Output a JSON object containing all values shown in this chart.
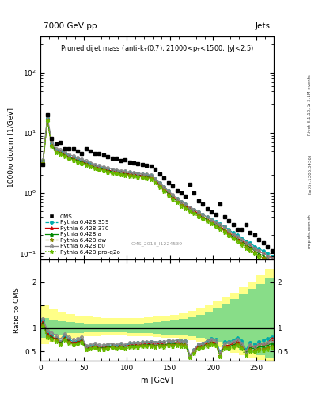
{
  "title_top": "7000 GeV pp",
  "title_right": "Jets",
  "plot_title": "Pruned dijet mass (anti-k_{T}(0.7), 21000<p_{T}<1500, |y|<2.5)",
  "ylabel_main": "1000/σ dσ/dm [1/GeV]",
  "ylabel_ratio": "Ratio to CMS",
  "xlabel": "m [GeV]",
  "watermark": "CMS_2013_I1224539",
  "rivet_label": "Rivet 3.1.10, ≥ 3.1M events",
  "arxiv_label": "[arXiv:1306.3436]",
  "mcplots_label": "mcplots.cern.ch",
  "cms_data_x": [
    3,
    8,
    13,
    18,
    23,
    28,
    33,
    38,
    43,
    48,
    53,
    58,
    63,
    68,
    73,
    78,
    83,
    88,
    93,
    98,
    103,
    108,
    113,
    118,
    123,
    128,
    133,
    138,
    143,
    148,
    153,
    158,
    163,
    168,
    173,
    178,
    183,
    188,
    193,
    198,
    203,
    208,
    213,
    218,
    223,
    228,
    233,
    238,
    243,
    248,
    253,
    258,
    263,
    268
  ],
  "cms_data_y": [
    3.0,
    20.0,
    8.0,
    6.5,
    7.0,
    5.5,
    5.5,
    5.5,
    5.0,
    4.5,
    5.5,
    5.0,
    4.5,
    4.5,
    4.3,
    4.0,
    3.8,
    3.8,
    3.5,
    3.6,
    3.3,
    3.2,
    3.1,
    3.0,
    2.9,
    2.8,
    2.5,
    2.1,
    1.8,
    1.5,
    1.3,
    1.1,
    1.0,
    0.9,
    1.4,
    1.0,
    0.75,
    0.65,
    0.55,
    0.48,
    0.45,
    0.65,
    0.4,
    0.35,
    0.3,
    0.25,
    0.25,
    0.3,
    0.22,
    0.2,
    0.17,
    0.15,
    0.13,
    0.11
  ],
  "mc_x": [
    3,
    8,
    13,
    18,
    23,
    28,
    33,
    38,
    43,
    48,
    53,
    58,
    63,
    68,
    73,
    78,
    83,
    88,
    93,
    98,
    103,
    108,
    113,
    118,
    123,
    128,
    133,
    138,
    143,
    148,
    153,
    158,
    163,
    168,
    173,
    178,
    183,
    188,
    193,
    198,
    203,
    208,
    213,
    218,
    223,
    228,
    233,
    238,
    243,
    248,
    253,
    258,
    263,
    268
  ],
  "py359_y": [
    3.5,
    18.0,
    6.8,
    5.2,
    5.0,
    4.6,
    4.2,
    3.9,
    3.65,
    3.45,
    3.25,
    3.05,
    2.88,
    2.74,
    2.62,
    2.52,
    2.43,
    2.36,
    2.3,
    2.25,
    2.2,
    2.16,
    2.12,
    2.07,
    2.02,
    1.97,
    1.73,
    1.48,
    1.27,
    1.09,
    0.93,
    0.81,
    0.72,
    0.65,
    0.59,
    0.54,
    0.49,
    0.44,
    0.4,
    0.37,
    0.34,
    0.31,
    0.28,
    0.25,
    0.22,
    0.2,
    0.18,
    0.16,
    0.15,
    0.13,
    0.12,
    0.11,
    0.1,
    0.09
  ],
  "py370_y": [
    3.4,
    17.5,
    6.5,
    5.0,
    4.8,
    4.4,
    4.0,
    3.75,
    3.52,
    3.32,
    3.13,
    2.94,
    2.77,
    2.63,
    2.52,
    2.42,
    2.33,
    2.26,
    2.2,
    2.15,
    2.1,
    2.06,
    2.02,
    1.97,
    1.92,
    1.87,
    1.63,
    1.4,
    1.2,
    1.03,
    0.88,
    0.77,
    0.68,
    0.61,
    0.56,
    0.51,
    0.46,
    0.41,
    0.37,
    0.34,
    0.31,
    0.28,
    0.25,
    0.22,
    0.2,
    0.18,
    0.16,
    0.15,
    0.135,
    0.12,
    0.11,
    0.1,
    0.09,
    0.085
  ],
  "pya_y": [
    3.3,
    17.0,
    6.3,
    4.9,
    4.7,
    4.3,
    3.92,
    3.67,
    3.44,
    3.24,
    3.06,
    2.87,
    2.7,
    2.57,
    2.46,
    2.36,
    2.27,
    2.2,
    2.14,
    2.09,
    2.04,
    2.0,
    1.96,
    1.91,
    1.86,
    1.81,
    1.57,
    1.35,
    1.15,
    0.99,
    0.85,
    0.74,
    0.65,
    0.59,
    0.54,
    0.49,
    0.44,
    0.4,
    0.36,
    0.33,
    0.3,
    0.27,
    0.24,
    0.21,
    0.19,
    0.17,
    0.155,
    0.14,
    0.125,
    0.112,
    0.1,
    0.09,
    0.082,
    0.074
  ],
  "pydw_y": [
    3.2,
    16.5,
    6.1,
    4.78,
    4.58,
    4.2,
    3.83,
    3.58,
    3.36,
    3.17,
    2.99,
    2.81,
    2.64,
    2.51,
    2.4,
    2.3,
    2.22,
    2.15,
    2.09,
    2.04,
    1.99,
    1.95,
    1.91,
    1.86,
    1.81,
    1.76,
    1.53,
    1.31,
    1.12,
    0.96,
    0.82,
    0.72,
    0.635,
    0.573,
    0.522,
    0.477,
    0.432,
    0.389,
    0.351,
    0.32,
    0.29,
    0.263,
    0.234,
    0.207,
    0.183,
    0.163,
    0.145,
    0.129,
    0.116,
    0.104,
    0.093,
    0.083,
    0.075,
    0.067
  ],
  "pyp0_y": [
    3.6,
    19.0,
    7.2,
    5.5,
    5.3,
    4.85,
    4.42,
    4.13,
    3.87,
    3.64,
    3.43,
    3.22,
    3.02,
    2.87,
    2.74,
    2.62,
    2.52,
    2.44,
    2.37,
    2.31,
    2.25,
    2.2,
    2.15,
    2.1,
    2.05,
    2.0,
    1.74,
    1.5,
    1.28,
    1.1,
    0.94,
    0.82,
    0.72,
    0.65,
    0.59,
    0.54,
    0.49,
    0.44,
    0.4,
    0.36,
    0.33,
    0.3,
    0.27,
    0.24,
    0.21,
    0.19,
    0.17,
    0.15,
    0.14,
    0.12,
    0.11,
    0.1,
    0.09,
    0.082
  ],
  "pyq2o_y": [
    3.1,
    16.0,
    6.0,
    4.65,
    4.45,
    4.08,
    3.72,
    3.48,
    3.26,
    3.07,
    2.9,
    2.72,
    2.56,
    2.43,
    2.32,
    2.23,
    2.14,
    2.07,
    2.01,
    1.97,
    1.92,
    1.88,
    1.84,
    1.79,
    1.74,
    1.69,
    1.47,
    1.26,
    1.07,
    0.92,
    0.79,
    0.69,
    0.61,
    0.55,
    0.5,
    0.455,
    0.41,
    0.37,
    0.335,
    0.305,
    0.277,
    0.25,
    0.222,
    0.196,
    0.174,
    0.154,
    0.137,
    0.122,
    0.109,
    0.097,
    0.087,
    0.078,
    0.07,
    0.063
  ],
  "band_yellow_x": [
    0,
    10,
    20,
    30,
    40,
    50,
    60,
    70,
    80,
    90,
    100,
    110,
    120,
    130,
    140,
    150,
    160,
    170,
    180,
    190,
    200,
    210,
    220,
    230,
    240,
    250,
    260,
    270
  ],
  "band_yellow_lo": [
    0.65,
    0.7,
    0.75,
    0.78,
    0.8,
    0.82,
    0.83,
    0.84,
    0.84,
    0.84,
    0.83,
    0.83,
    0.82,
    0.81,
    0.8,
    0.79,
    0.77,
    0.74,
    0.7,
    0.65,
    0.59,
    0.53,
    0.47,
    0.42,
    0.37,
    0.32,
    0.27,
    0.25
  ],
  "band_yellow_hi": [
    1.5,
    1.42,
    1.35,
    1.3,
    1.27,
    1.25,
    1.24,
    1.23,
    1.22,
    1.22,
    1.22,
    1.23,
    1.24,
    1.25,
    1.27,
    1.29,
    1.33,
    1.37,
    1.43,
    1.5,
    1.58,
    1.68,
    1.78,
    1.9,
    2.02,
    2.15,
    2.28,
    2.4
  ],
  "band_green_lo": [
    0.8,
    0.84,
    0.87,
    0.89,
    0.9,
    0.91,
    0.91,
    0.91,
    0.91,
    0.91,
    0.9,
    0.9,
    0.89,
    0.88,
    0.87,
    0.86,
    0.84,
    0.82,
    0.79,
    0.75,
    0.7,
    0.65,
    0.59,
    0.53,
    0.47,
    0.41,
    0.36,
    0.32
  ],
  "band_green_hi": [
    1.22,
    1.18,
    1.15,
    1.13,
    1.12,
    1.11,
    1.11,
    1.1,
    1.1,
    1.1,
    1.11,
    1.11,
    1.12,
    1.13,
    1.15,
    1.17,
    1.2,
    1.24,
    1.29,
    1.36,
    1.44,
    1.53,
    1.63,
    1.74,
    1.85,
    1.96,
    2.08,
    2.18
  ],
  "xlim": [
    0,
    270
  ],
  "ylim_main": [
    0.08,
    400
  ],
  "ylim_ratio": [
    0.3,
    2.5
  ],
  "ratio_ylim_display": [
    0.4,
    2.4
  ],
  "colors": {
    "cms": "#000000",
    "py359": "#00aaaa",
    "py370": "#cc0000",
    "pya": "#008800",
    "pydw": "#888800",
    "pyp0": "#888888",
    "pyq2o": "#66bb00"
  }
}
